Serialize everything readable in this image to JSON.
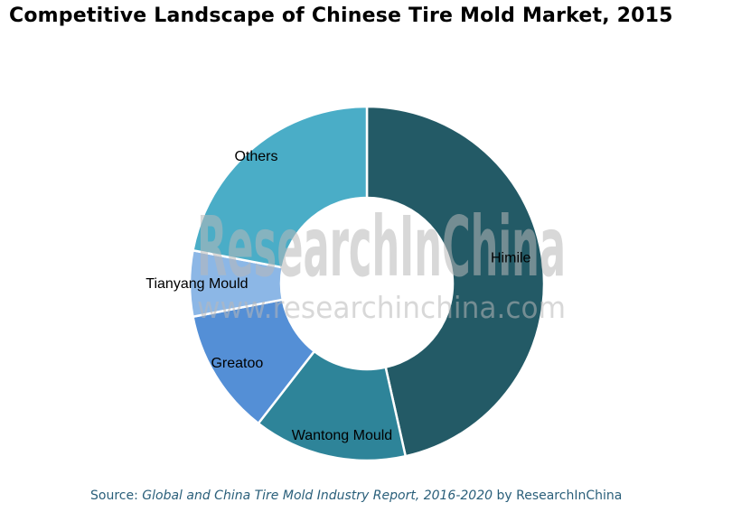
{
  "title": "Competitive Landscape of Chinese Tire Mold Market, 2015",
  "source": {
    "prefix": "Source: ",
    "report": "Global and China Tire Mold Industry Report, 2016-2020",
    "suffix": " by ResearchInChina"
  },
  "watermark": {
    "brand": "ResearchInChina",
    "url": "www.researchinchina.com"
  },
  "chart_data": {
    "type": "pie",
    "subtype": "donut",
    "title": "Competitive Landscape of Chinese Tire Mold Market, 2015",
    "legend": "none",
    "slices": [
      {
        "label": "Himile",
        "value": 46.5,
        "color": "#235a66"
      },
      {
        "label": "Wantong Mould",
        "value": 14.0,
        "color": "#2e8499"
      },
      {
        "label": "Greatoo",
        "value": 11.5,
        "color": "#548fd6"
      },
      {
        "label": "Tianyang Mould",
        "value": 6.0,
        "color": "#8cb7e6"
      },
      {
        "label": "Others",
        "value": 22.0,
        "color": "#4aadc7"
      }
    ]
  }
}
